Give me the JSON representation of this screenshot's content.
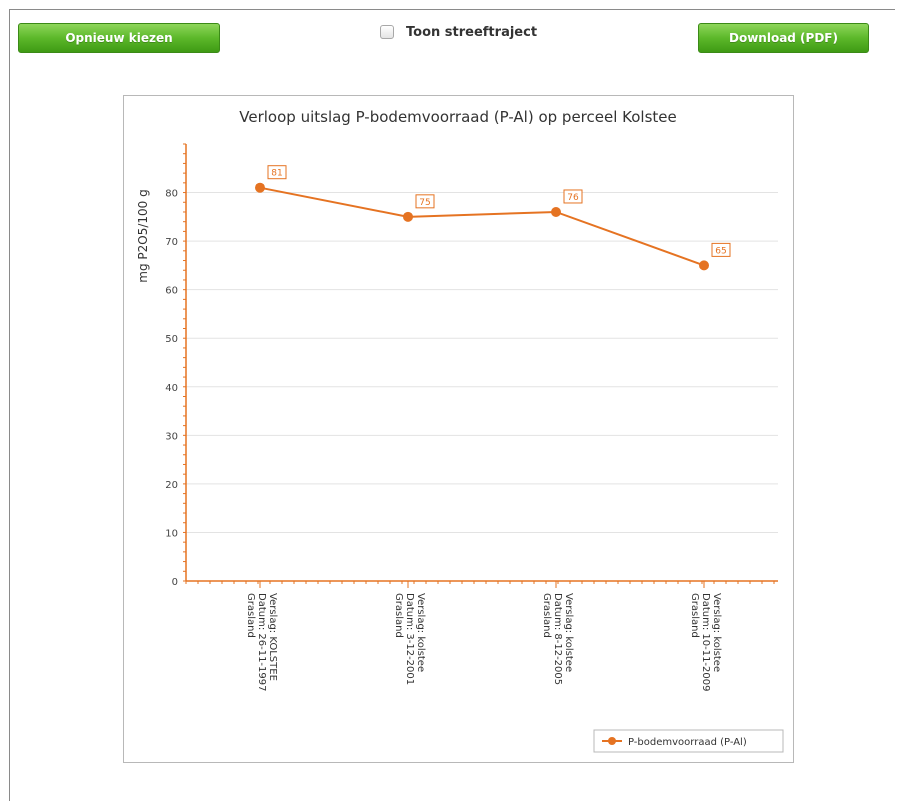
{
  "toolbar": {
    "reselect_label": "Opnieuw kiezen",
    "download_label": "Download (PDF)",
    "target_toggle_label": "Toon streeftraject",
    "target_toggle_checked": false
  },
  "colors": {
    "button_green": "#5cb82a",
    "series_orange": "#e57322",
    "grid": "#e3e3e3"
  },
  "chart_data": {
    "type": "line",
    "title": "Verloop uitslag P-bodemvoorraad (P-Al) op perceel Kolstee",
    "xlabel": "",
    "ylabel": "mg P2O5/100 g",
    "ylim": [
      0,
      90
    ],
    "yticks": [
      0,
      10,
      20,
      30,
      40,
      50,
      60,
      70,
      80
    ],
    "grid": true,
    "legend": "bottom-right",
    "categories": [
      [
        "Verslag: KOLSTEE",
        "Datum: 26-11-1997",
        "Grasland"
      ],
      [
        "Verslag: kolstee",
        "Datum: 3-12-2001",
        "Grasland"
      ],
      [
        "Verslag: kolstee",
        "Datum: 8-12-2005",
        "Grasland"
      ],
      [
        "Verslag: kolstee",
        "Datum: 10-11-2009",
        "Grasland"
      ]
    ],
    "series": [
      {
        "name": "P-bodemvoorraad (P-Al)",
        "values": [
          81,
          75,
          76,
          65
        ],
        "color": "#e57322"
      }
    ]
  }
}
